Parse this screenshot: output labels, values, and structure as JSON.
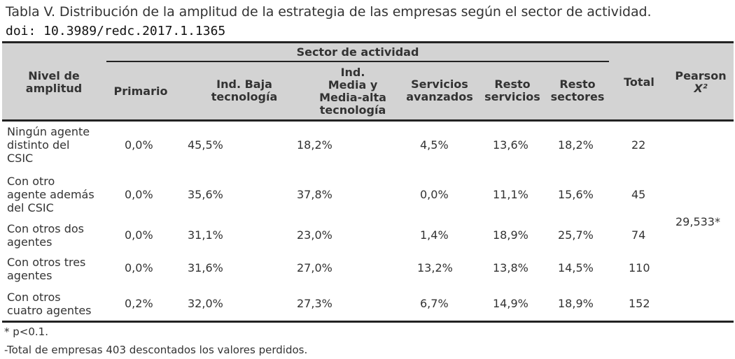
{
  "caption": {
    "title": "Tabla V. Distribución de la amplitud de la estrategia de las empresas según el sector de actividad.",
    "doi": "doi: 10.3989/redc.2017.1.1365"
  },
  "table": {
    "group_header": "Sector de actividad",
    "headers": {
      "nivel": "Nivel de\namplitud",
      "primario": "Primario",
      "ind_baja": "Ind. Baja\ntecnología",
      "ind_media": "Ind.\nMedia y\nMedia-alta\ntecnología",
      "servicios_avanzados": "Servicios\navanzados",
      "resto_servicios": "Resto\nservicios",
      "resto_sectores": "Resto\nsectores",
      "total": "Total",
      "pearson": "Pearson",
      "pearson_symbol": "X²"
    },
    "rows": [
      {
        "label": "Ningún agente\ndistinto del\nCSIC",
        "primario": "0,0%",
        "ind_baja": "45,5%",
        "ind_media": "18,2%",
        "servicios_avanzados": "4,5%",
        "resto_servicios": "13,6%",
        "resto_sectores": "18,2%",
        "total": "22"
      },
      {
        "label": "Con otro\nagente además\ndel CSIC",
        "primario": "0,0%",
        "ind_baja": "35,6%",
        "ind_media": "37,8%",
        "servicios_avanzados": "0,0%",
        "resto_servicios": "11,1%",
        "resto_sectores": "15,6%",
        "total": "45"
      },
      {
        "label": "Con otros dos\nagentes",
        "primario": "0,0%",
        "ind_baja": "31,1%",
        "ind_media": "23,0%",
        "servicios_avanzados": "1,4%",
        "resto_servicios": "18,9%",
        "resto_sectores": "25,7%",
        "total": "74"
      },
      {
        "label": "Con otros tres\nagentes",
        "primario": "0,0%",
        "ind_baja": "31,6%",
        "ind_media": "27,0%",
        "servicios_avanzados": "13,2%",
        "resto_servicios": "13,8%",
        "resto_sectores": "14,5%",
        "total": "110"
      },
      {
        "label": "Con otros\ncuatro agentes",
        "primario": "0,2%",
        "ind_baja": "32,0%",
        "ind_media": "27,3%",
        "servicios_avanzados": "6,7%",
        "resto_servicios": "14,9%",
        "resto_sectores": "18,9%",
        "total": "152"
      }
    ],
    "pearson_value": "29,533*"
  },
  "notes": {
    "significance": "* p<0.1.",
    "total": "-Total de empresas 403 descontados los valores perdidos."
  },
  "colors": {
    "header_background": "#d3d3d3",
    "rules": "#222222",
    "text": "#333333"
  }
}
